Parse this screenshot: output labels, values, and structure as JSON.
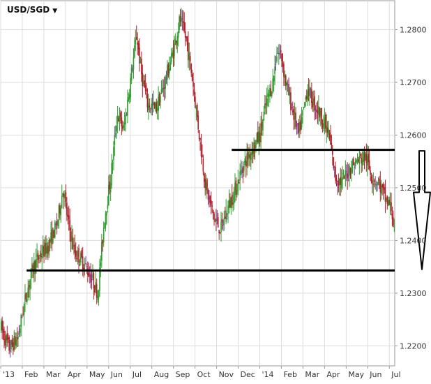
{
  "symbol": {
    "label": "USD/SGD",
    "caret": "▼"
  },
  "colors": {
    "up": "#2e9e2e",
    "down": "#b0202a",
    "neutral": "#7a3b9e",
    "grid": "#dcdcdc",
    "axis": "#999999",
    "level_line": "#000000",
    "arrow": "#000000"
  },
  "chart_data": {
    "type": "candlestick",
    "title": "USD/SGD",
    "xlabel": "",
    "ylabel": "",
    "x_ticks": [
      "'13",
      "Feb",
      "Mar",
      "Apr",
      "May",
      "Jun",
      "Jul",
      "Aug",
      "Sep",
      "Oct",
      "Nov",
      "Dec",
      "'14",
      "Feb",
      "Mar",
      "Apr",
      "May",
      "Jun",
      "Jul"
    ],
    "y_ticks": [
      1.22,
      1.23,
      1.24,
      1.25,
      1.26,
      1.27,
      1.28
    ],
    "y_tick_labels": [
      "1.2200",
      "1.2300",
      "1.2400",
      "1.2500",
      "1.2600",
      "1.2700",
      "1.2800"
    ],
    "ylim": [
      1.2162,
      1.2855
    ],
    "x_range_months": [
      0,
      18.25
    ],
    "grid": true,
    "price_path_monthly": [
      [
        0.0,
        1.2235
      ],
      [
        0.4,
        1.2195
      ],
      [
        0.8,
        1.2215
      ],
      [
        1.0,
        1.226
      ],
      [
        1.2,
        1.23
      ],
      [
        1.5,
        1.235
      ],
      [
        1.8,
        1.237
      ],
      [
        2.2,
        1.239
      ],
      [
        2.6,
        1.243
      ],
      [
        2.9,
        1.25
      ],
      [
        3.1,
        1.244
      ],
      [
        3.4,
        1.238
      ],
      [
        3.8,
        1.236
      ],
      [
        4.2,
        1.233
      ],
      [
        4.5,
        1.23
      ],
      [
        4.8,
        1.244
      ],
      [
        5.1,
        1.252
      ],
      [
        5.4,
        1.264
      ],
      [
        5.7,
        1.261
      ],
      [
        6.0,
        1.27
      ],
      [
        6.3,
        1.279
      ],
      [
        6.5,
        1.272
      ],
      [
        6.8,
        1.266
      ],
      [
        7.2,
        1.265
      ],
      [
        7.6,
        1.27
      ],
      [
        8.0,
        1.276
      ],
      [
        8.3,
        1.282
      ],
      [
        8.6,
        1.278
      ],
      [
        8.9,
        1.27
      ],
      [
        9.2,
        1.26
      ],
      [
        9.5,
        1.25
      ],
      [
        9.9,
        1.244
      ],
      [
        10.2,
        1.242
      ],
      [
        10.5,
        1.246
      ],
      [
        10.9,
        1.25
      ],
      [
        11.2,
        1.254
      ],
      [
        11.6,
        1.257
      ],
      [
        12.0,
        1.26
      ],
      [
        12.3,
        1.266
      ],
      [
        12.6,
        1.27
      ],
      [
        12.8,
        1.276
      ],
      [
        13.0,
        1.275
      ],
      [
        13.2,
        1.27
      ],
      [
        13.5,
        1.265
      ],
      [
        13.8,
        1.26
      ],
      [
        14.0,
        1.264
      ],
      [
        14.2,
        1.269
      ],
      [
        14.5,
        1.266
      ],
      [
        14.8,
        1.264
      ],
      [
        15.2,
        1.26
      ],
      [
        15.5,
        1.252
      ],
      [
        15.8,
        1.251
      ],
      [
        16.2,
        1.254
      ],
      [
        16.5,
        1.255
      ],
      [
        16.9,
        1.256
      ],
      [
        17.2,
        1.252
      ],
      [
        17.5,
        1.251
      ],
      [
        17.8,
        1.248
      ],
      [
        18.1,
        1.246
      ],
      [
        18.25,
        1.241
      ]
    ],
    "annotations": {
      "support_line": {
        "value": 1.2343,
        "from_month": 1.2,
        "to_month": 18.25
      },
      "resistance_line": {
        "value": 1.2572,
        "from_month": 10.7,
        "to_month": 18.25
      },
      "arrow": {
        "direction": "down",
        "from_value": 1.257,
        "to_value": 1.2345
      }
    }
  }
}
